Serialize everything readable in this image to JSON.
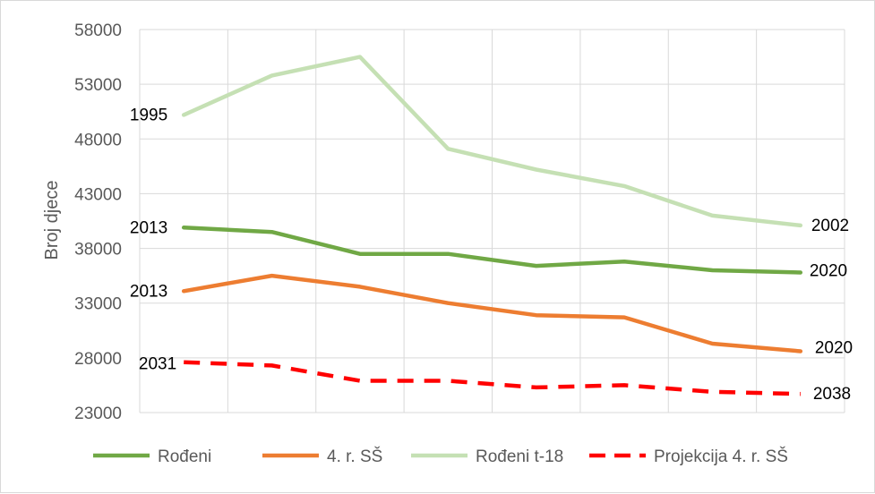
{
  "chart_data": {
    "type": "line",
    "title": "",
    "xlabel": "",
    "ylabel": "Broj djece",
    "ylim": [
      23000,
      58000
    ],
    "yticks": [
      23000,
      28000,
      33000,
      38000,
      43000,
      48000,
      53000,
      58000
    ],
    "grid": true,
    "legend_position": "bottom",
    "x": [
      1,
      2,
      3,
      4,
      5,
      6,
      7,
      8
    ],
    "series": [
      {
        "name": "Rođeni",
        "color": "#70a845",
        "dash": false,
        "values": [
          39900,
          39500,
          37500,
          37500,
          36400,
          36800,
          36000,
          35800
        ],
        "start_label": "2013",
        "end_label": "2020"
      },
      {
        "name": "4. r. SŠ",
        "color": "#ed7d31",
        "dash": false,
        "values": [
          34100,
          35500,
          34500,
          33000,
          31900,
          31700,
          29300,
          28600
        ],
        "start_label": "2013",
        "end_label": "2020"
      },
      {
        "name": "Rođeni t-18",
        "color": "#c5e0b4",
        "dash": false,
        "values": [
          50200,
          53800,
          55500,
          47100,
          45200,
          43700,
          41000,
          40100
        ],
        "start_label": "1995",
        "end_label": "2002"
      },
      {
        "name": "Projekcija 4. r. SŠ",
        "color": "#ff0000",
        "dash": true,
        "values": [
          27600,
          27300,
          25900,
          25900,
          25300,
          25500,
          24900,
          24700
        ],
        "start_label": "2031",
        "end_label": "2038"
      }
    ]
  }
}
